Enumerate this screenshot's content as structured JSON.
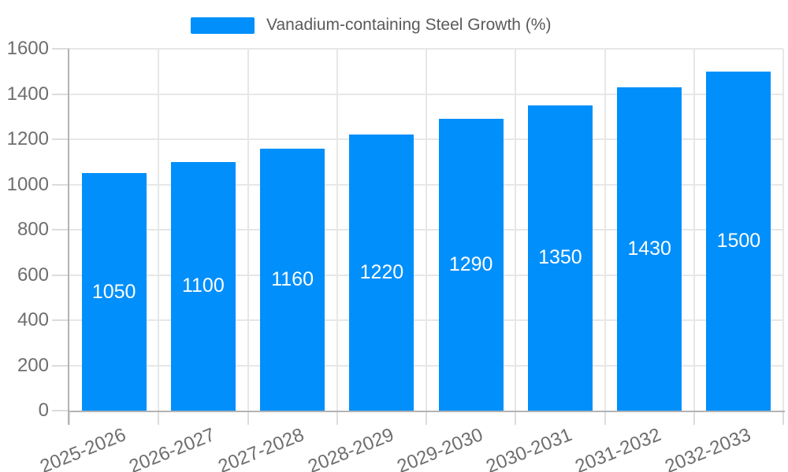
{
  "chart_data": {
    "type": "bar",
    "title": "",
    "legend": "Vanadium-containing Steel Growth (%)",
    "legend_position": "top",
    "categories": [
      "2025-2026",
      "2026-2027",
      "2027-2028",
      "2028-2029",
      "2029-2030",
      "2030-2031",
      "2031-2032",
      "2032-2033"
    ],
    "values": [
      1050,
      1100,
      1160,
      1220,
      1290,
      1350,
      1430,
      1500
    ],
    "bar_value_labels": [
      "1050",
      "1100",
      "1160",
      "1220",
      "1290",
      "1350",
      "1430",
      "1500"
    ],
    "xlabel": "",
    "ylabel": "",
    "ylim": [
      0,
      1600
    ],
    "yticks": [
      0,
      200,
      400,
      600,
      800,
      1000,
      1200,
      1400,
      1600
    ],
    "grid": "both",
    "colors": {
      "bar": "#008FFB",
      "bar_label": "#FFFFFF",
      "axis_label": "#6E6E6E",
      "legend_label": "#5A5A5A",
      "gridline": "#E7E7E7",
      "axis_line": "#B3B3B3",
      "tick": "#DCDCDC",
      "background": "#FFFFFF"
    }
  }
}
